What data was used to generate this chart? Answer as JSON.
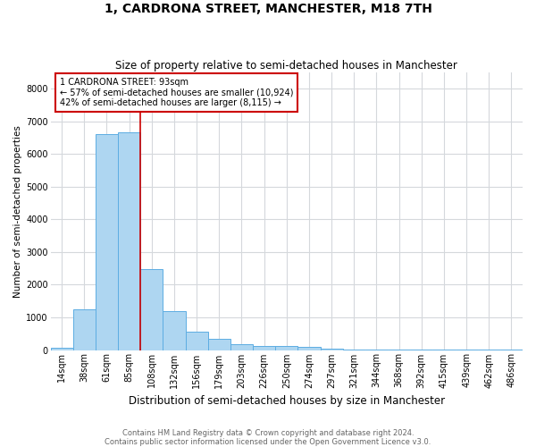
{
  "title": "1, CARDRONA STREET, MANCHESTER, M18 7TH",
  "subtitle": "Size of property relative to semi-detached houses in Manchester",
  "xlabel": "Distribution of semi-detached houses by size in Manchester",
  "ylabel": "Number of semi-detached properties",
  "footnote": "Contains HM Land Registry data © Crown copyright and database right 2024.\nContains public sector information licensed under the Open Government Licence v3.0.",
  "bar_labels": [
    "14sqm",
    "38sqm",
    "61sqm",
    "85sqm",
    "108sqm",
    "132sqm",
    "156sqm",
    "179sqm",
    "203sqm",
    "226sqm",
    "250sqm",
    "274sqm",
    "297sqm",
    "321sqm",
    "344sqm",
    "368sqm",
    "392sqm",
    "415sqm",
    "439sqm",
    "462sqm",
    "486sqm"
  ],
  "bar_values": [
    80,
    1250,
    6600,
    6650,
    2470,
    1190,
    560,
    340,
    190,
    120,
    110,
    90,
    55,
    20,
    10,
    10,
    5,
    5,
    2,
    2,
    2
  ],
  "bar_color": "#AED6F1",
  "bar_edge_color": "#5DADE2",
  "vline_x": 3.5,
  "annotation_title": "1 CARDRONA STREET: 93sqm",
  "annotation_line1": "← 57% of semi-detached houses are smaller (10,924)",
  "annotation_line2": "42% of semi-detached houses are larger (8,115) →",
  "vline_color": "#CC0000",
  "annotation_box_edge_color": "#CC0000",
  "ylim": [
    0,
    8500
  ],
  "yticks": [
    0,
    1000,
    2000,
    3000,
    4000,
    5000,
    6000,
    7000,
    8000
  ],
  "grid_color": "#D5D8DC",
  "background_color": "#FFFFFF",
  "title_fontsize": 10,
  "subtitle_fontsize": 8.5,
  "xlabel_fontsize": 8.5,
  "ylabel_fontsize": 7.5,
  "tick_fontsize": 7,
  "footnote_fontsize": 6,
  "footnote_color": "#666666"
}
